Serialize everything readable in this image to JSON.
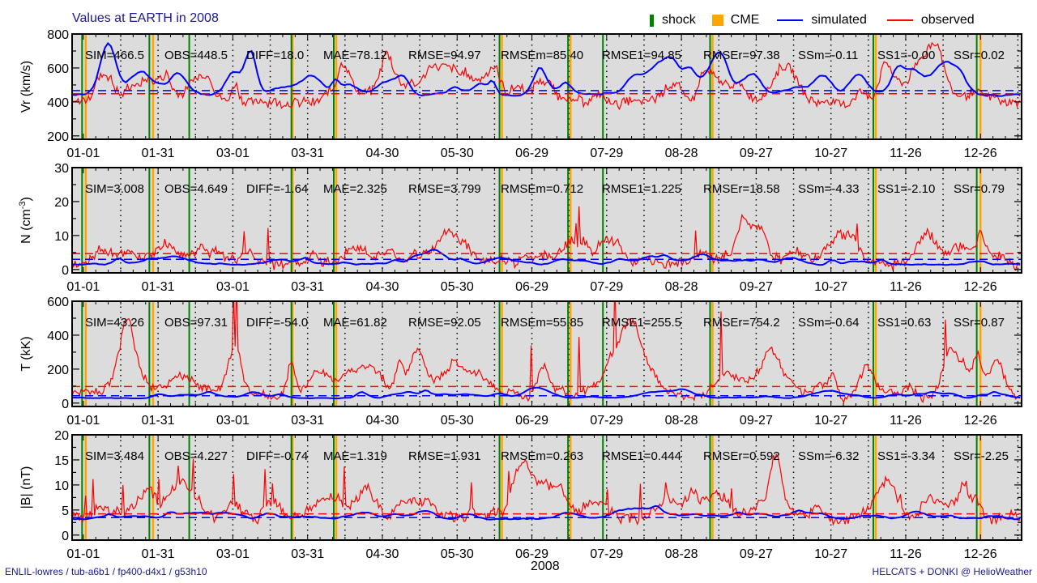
{
  "title": "Values at EARTH in 2008",
  "legend": {
    "shock": "shock",
    "cme": "CME",
    "simulated": "simulated",
    "observed": "observed"
  },
  "colors": {
    "shock": "#008000",
    "cme": "#ffa500",
    "simulated": "#0000ff",
    "observed": "#ff0000",
    "panel_bg": "#dcdcdc",
    "title": "#1a1a8c"
  },
  "footer": {
    "left": "ENLIL-lowres / tub-a6b1 / fp400-d4x1 / g53h10",
    "right": "HELCATS + DONKI @ HelioWeather",
    "xlabel": "2008"
  },
  "chart_data": [
    {
      "type": "line",
      "ylabel": "Vr (km/s)",
      "ylim": [
        180,
        800
      ],
      "yticks": [
        200,
        400,
        600,
        800
      ],
      "xlim_days": [
        -4.5,
        376.5
      ],
      "xtick_days": [
        0,
        30,
        60,
        90,
        120,
        150,
        180,
        210,
        240,
        270,
        300,
        330,
        360
      ],
      "xtick_labels": [
        "01-01",
        "01-31",
        "03-01",
        "03-31",
        "04-30",
        "05-30",
        "06-29",
        "07-29",
        "08-28",
        "09-27",
        "10-27",
        "11-26",
        "12-26"
      ],
      "means": {
        "simulated": 466.5,
        "observed": 448.5
      },
      "stats": [
        "SIM=466.5",
        "OBS=448.5",
        "DIFF=18.0",
        "MAE=78.12",
        "RMSE=94.97",
        "RMSEm=85.40",
        "RMSE1=94.85",
        "RMSEr=97.38",
        "SSm=-0.11",
        "SS1=-0.00",
        "SSr=0.02"
      ],
      "series": [
        {
          "name": "simulated",
          "base": 440,
          "amp": 120,
          "noise": 15,
          "seed": 3
        },
        {
          "name": "observed",
          "base": 400,
          "amp": 150,
          "noise": 45,
          "seed": 7
        }
      ]
    },
    {
      "type": "line",
      "ylabel": "N (cm-3)",
      "ylabel_main": "N (cm",
      "ylabel_sup": "-3",
      "ylabel_end": ")",
      "ylim": [
        -1,
        30
      ],
      "yticks": [
        0,
        10,
        20,
        30
      ],
      "xlim_days": [
        -4.5,
        376.5
      ],
      "xtick_days": [
        0,
        30,
        60,
        90,
        120,
        150,
        180,
        210,
        240,
        270,
        300,
        330,
        360
      ],
      "xtick_labels": [
        "01-01",
        "01-31",
        "03-01",
        "03-31",
        "04-30",
        "05-30",
        "06-29",
        "07-29",
        "08-28",
        "09-27",
        "10-27",
        "11-26",
        "12-26"
      ],
      "means": {
        "simulated": 3.008,
        "observed": 4.649
      },
      "stats": [
        "SIM=3.008",
        "OBS=4.649",
        "DIFF=-1.64",
        "MAE=2.325",
        "RMSE=3.799",
        "RMSEm=0.712",
        "RMSE1=1.225",
        "RMSEr=18.58",
        "SSm=-4.33",
        "SS1=-2.10",
        "SSr=0.79"
      ],
      "series": [
        {
          "name": "simulated",
          "base": 1.5,
          "amp": 1.5,
          "noise": 0.5,
          "seed": 11
        },
        {
          "name": "observed",
          "base": 2,
          "amp": 4,
          "noise": 2.5,
          "seed": 13,
          "spiky": true
        }
      ]
    },
    {
      "type": "line",
      "ylabel": "T (kK)",
      "ylim": [
        -20,
        600
      ],
      "yticks": [
        0,
        200,
        400,
        600
      ],
      "xlim_days": [
        -4.5,
        376.5
      ],
      "xtick_days": [
        0,
        30,
        60,
        90,
        120,
        150,
        180,
        210,
        240,
        270,
        300,
        330,
        360
      ],
      "xtick_labels": [
        "01-01",
        "01-31",
        "03-01",
        "03-31",
        "04-30",
        "05-30",
        "06-29",
        "07-29",
        "08-28",
        "09-27",
        "10-27",
        "11-26",
        "12-26"
      ],
      "means": {
        "simulated": 43.26,
        "observed": 97.31
      },
      "stats": [
        "SIM=43.26",
        "OBS=97.31",
        "DIFF=-54.0",
        "MAE=61.82",
        "RMSE=92.05",
        "RMSEm=55.85",
        "RMSE1=255.5",
        "RMSEr=754.2",
        "SSm=-0.64",
        "SS1=0.63",
        "SSr=0.87"
      ],
      "series": [
        {
          "name": "simulated",
          "base": 30,
          "amp": 30,
          "noise": 6,
          "seed": 17
        },
        {
          "name": "observed",
          "base": 40,
          "amp": 140,
          "noise": 40,
          "seed": 19,
          "spiky": true
        }
      ]
    },
    {
      "type": "line",
      "ylabel": "|B| (nT)",
      "ylim": [
        -1,
        20
      ],
      "yticks": [
        0,
        5,
        10,
        15,
        20
      ],
      "xlim_days": [
        -4.5,
        376.5
      ],
      "xtick_days": [
        0,
        30,
        60,
        90,
        120,
        150,
        180,
        210,
        240,
        270,
        300,
        330,
        360
      ],
      "xtick_labels": [
        "01-01",
        "01-31",
        "03-01",
        "03-31",
        "04-30",
        "05-30",
        "06-29",
        "07-29",
        "08-28",
        "09-27",
        "10-27",
        "11-26",
        "12-26"
      ],
      "means": {
        "simulated": 3.484,
        "observed": 4.227
      },
      "stats": [
        "SIM=3.484",
        "OBS=4.227",
        "DIFF=-0.74",
        "MAE=1.319",
        "RMSE=1.931",
        "RMSEm=0.263",
        "RMSE1=0.444",
        "RMSEr=0.592",
        "SSm=-6.32",
        "SS1=-3.34",
        "SSr=-2.25"
      ],
      "series": [
        {
          "name": "simulated",
          "base": 3.2,
          "amp": 1.2,
          "noise": 0.4,
          "seed": 23
        },
        {
          "name": "observed",
          "base": 3.5,
          "amp": 2.5,
          "noise": 1.8,
          "seed": 29,
          "spiky": true
        }
      ]
    }
  ],
  "events": {
    "shock_days": [
      -0.5,
      26.5,
      42.5,
      83.5,
      100.5,
      167,
      194.5,
      208.5,
      251.5,
      317,
      358.5
    ],
    "cme_days": [
      0.5,
      27.5,
      83.5,
      101,
      167.5,
      195,
      252,
      317.5,
      359.5
    ]
  },
  "dotted_grid_days": [
    15,
    45,
    75,
    105,
    135,
    165,
    195,
    225,
    255,
    285,
    315,
    345,
    375,
    0,
    30,
    60,
    90,
    120,
    150,
    180,
    210,
    240,
    270,
    300,
    330,
    360
  ]
}
